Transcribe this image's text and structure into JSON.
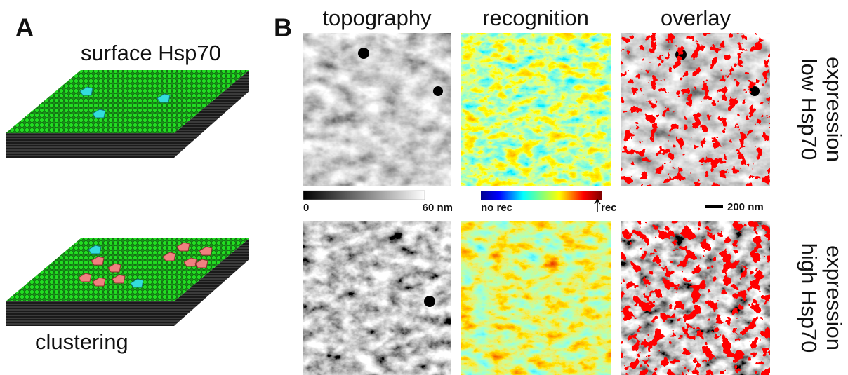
{
  "panel_a": {
    "label": "A",
    "top_caption": "surface Hsp70",
    "bottom_caption": "clustering"
  },
  "panel_b": {
    "label": "B",
    "columns": [
      "topography",
      "recognition",
      "overlay"
    ],
    "rows": [
      [
        "low Hsp70",
        "expression"
      ],
      [
        "high Hsp70",
        "expression"
      ]
    ],
    "topography_scale": {
      "min_label": "0",
      "max_label": "60 nm"
    },
    "recognition_scale": {
      "min_label": "no rec",
      "max_label": "rec"
    },
    "scale_bar": "200 nm"
  }
}
